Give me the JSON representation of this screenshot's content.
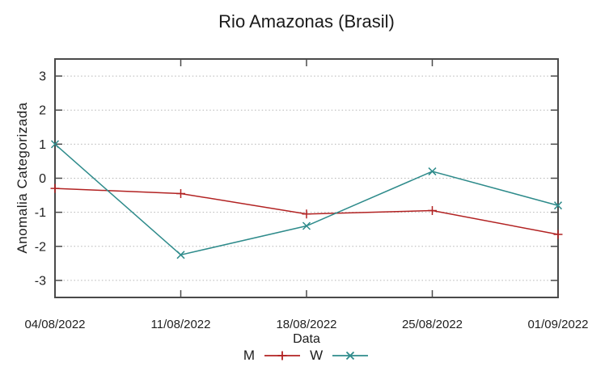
{
  "chart_data": {
    "type": "line",
    "title": "Rio Amazonas (Brasil)",
    "xlabel": "Data",
    "ylabel": "Anomalia Categorizada",
    "categories": [
      "04/08/2022",
      "11/08/2022",
      "18/08/2022",
      "25/08/2022",
      "01/09/2022"
    ],
    "yticks": [
      -3,
      -2,
      -1,
      0,
      1,
      2,
      3
    ],
    "ylim": [
      -3.5,
      3.5
    ],
    "grid": "horizontal-dotted",
    "legend_position": "bottom-center",
    "series": [
      {
        "name": "M",
        "color": "#b22222",
        "marker": "plus",
        "values": [
          -0.3,
          -0.45,
          -1.05,
          -0.95,
          -1.65
        ]
      },
      {
        "name": "W",
        "color": "#2e8b8b",
        "marker": "x",
        "values": [
          1.0,
          -2.25,
          -1.4,
          0.2,
          -0.8
        ]
      }
    ]
  }
}
